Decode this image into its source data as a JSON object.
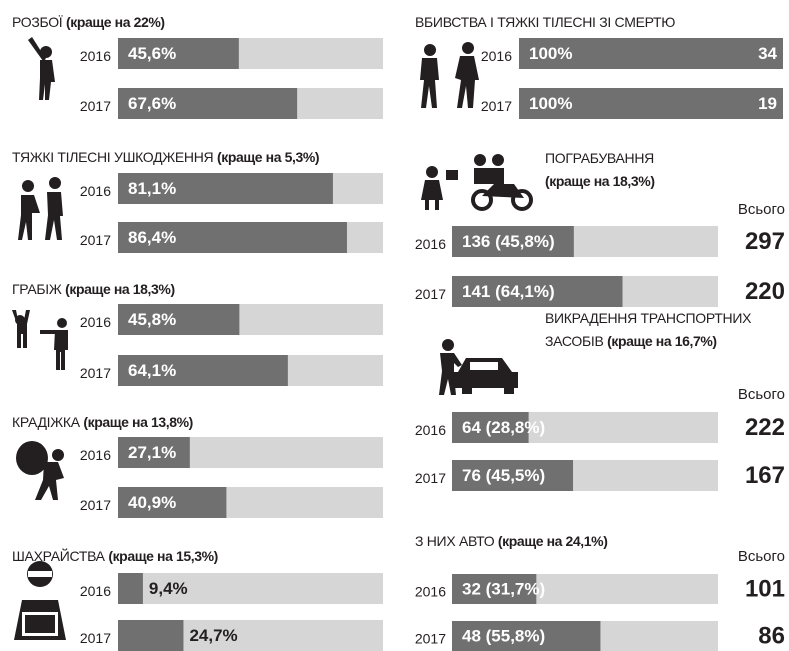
{
  "chart_data": [
    {
      "type": "bar",
      "title": "РОЗБОЇ",
      "note": "(краще на 22%)",
      "categories": [
        "2016",
        "2017"
      ],
      "values": [
        45.6,
        67.6
      ],
      "value_labels": [
        "45,6%",
        "67,6%"
      ],
      "xlim": [
        0,
        100
      ]
    },
    {
      "type": "bar",
      "title": "ТЯЖКІ ТІЛЕСНІ УШКОДЖЕННЯ",
      "note": "(краще на 5,3%)",
      "categories": [
        "2016",
        "2017"
      ],
      "values": [
        81.1,
        86.4
      ],
      "value_labels": [
        "81,1%",
        "86,4%"
      ],
      "xlim": [
        0,
        100
      ]
    },
    {
      "type": "bar",
      "title": "ГРАБІЖ",
      "note": "(краще на 18,3%)",
      "categories": [
        "2016",
        "2017"
      ],
      "values": [
        45.8,
        64.1
      ],
      "value_labels": [
        "45,8%",
        "64,1%"
      ],
      "xlim": [
        0,
        100
      ]
    },
    {
      "type": "bar",
      "title": "КРАДІЖКА",
      "note": "(краще на 13,8%)",
      "categories": [
        "2016",
        "2017"
      ],
      "values": [
        27.1,
        40.9
      ],
      "value_labels": [
        "27,1%",
        "40,9%"
      ],
      "xlim": [
        0,
        100
      ]
    },
    {
      "type": "bar",
      "title": "ШАХРАЙСТВА",
      "note": "(краще на 15,3%)",
      "categories": [
        "2016",
        "2017"
      ],
      "values": [
        9.4,
        24.7
      ],
      "value_labels": [
        "9,4%",
        "24,7%"
      ],
      "xlim": [
        0,
        100
      ]
    },
    {
      "type": "bar",
      "title": "ВБИВСТВА І ТЯЖКІ ТІЛЕСНІ ЗІ СМЕРТЮ",
      "categories": [
        "2016",
        "2017"
      ],
      "values": [
        100,
        100
      ],
      "value_labels": [
        "100%",
        "100%"
      ],
      "totals": [
        34,
        19
      ],
      "xlim": [
        0,
        100
      ]
    },
    {
      "type": "bar",
      "title": "ПОГРАБУВАННЯ",
      "note": "(краще на 18,3%)",
      "categories": [
        "2016",
        "2017"
      ],
      "values": [
        45.8,
        64.1
      ],
      "value_labels": [
        "136 (45,8%)",
        "141 (64,1%)"
      ],
      "total_label": "Всього",
      "totals": [
        297,
        220
      ],
      "xlim": [
        0,
        100
      ]
    },
    {
      "type": "bar",
      "title": "ВИКРАДЕННЯ ТРАНСПОРТНИХ ЗАСОБІВ",
      "note": "(краще на 16,7%)",
      "categories": [
        "2016",
        "2017"
      ],
      "values": [
        28.8,
        45.5
      ],
      "value_labels": [
        "64 (28,8%)",
        "76 (45,5%)"
      ],
      "total_label": "Всього",
      "totals": [
        222,
        167
      ],
      "xlim": [
        0,
        100
      ]
    },
    {
      "type": "bar",
      "title": "З НИХ АВТО",
      "note": "(краще на 24,1%)",
      "categories": [
        "2016",
        "2017"
      ],
      "values": [
        31.7,
        55.8
      ],
      "value_labels": [
        "32 (31,7%)",
        "48 (55,8%)"
      ],
      "total_label": "Всього",
      "totals": [
        101,
        86
      ],
      "xlim": [
        0,
        100
      ]
    }
  ]
}
